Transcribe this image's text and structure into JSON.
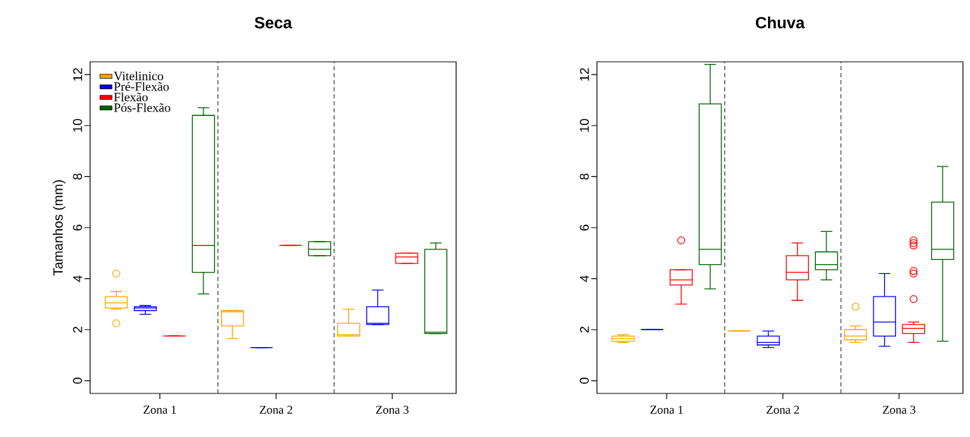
{
  "chart_data": [
    {
      "type": "box",
      "title": "Seca",
      "ylabel": "Tamanhos (mm)",
      "categories": [
        "Zona 1",
        "Zona 2",
        "Zona 3"
      ],
      "ylim": [
        -0.5,
        12.5
      ],
      "yticks": [
        0,
        2,
        4,
        6,
        8,
        10,
        12
      ],
      "legend": "top left",
      "series": [
        {
          "name": "Vitelinico",
          "color": "#ffa500",
          "boxes": [
            {
              "low": 2.8,
              "q1": 2.85,
              "median": 3.05,
              "q3": 3.3,
              "high": 3.5,
              "outliers": [
                4.2,
                2.25
              ]
            },
            {
              "low": 1.65,
              "q1": 2.15,
              "median": 2.7,
              "q3": 2.75,
              "high": 2.75
            },
            {
              "low": 1.75,
              "q1": 1.75,
              "median": 1.8,
              "q3": 2.25,
              "high": 2.8
            }
          ]
        },
        {
          "name": "Pré-Flexão",
          "color": "#0000ff",
          "boxes": [
            {
              "low": 2.6,
              "q1": 2.75,
              "median": 2.85,
              "q3": 2.9,
              "high": 2.95
            },
            {
              "low": 1.3,
              "q1": 1.3,
              "median": 1.3,
              "q3": 1.3,
              "high": 1.3
            },
            {
              "low": 2.2,
              "q1": 2.2,
              "median": 2.25,
              "q3": 2.9,
              "high": 3.55
            }
          ]
        },
        {
          "name": "Flexão",
          "color": "#ff0000",
          "boxes": [
            {
              "low": 1.75,
              "q1": 1.75,
              "median": 1.75,
              "q3": 1.75,
              "high": 1.75
            },
            {
              "low": 5.3,
              "q1": 5.3,
              "median": 5.3,
              "q3": 5.3,
              "high": 5.3
            },
            {
              "low": 4.6,
              "q1": 4.6,
              "median": 4.85,
              "q3": 5.0,
              "high": 5.0
            }
          ]
        },
        {
          "name": "Pós-Flexão",
          "color": "#006400",
          "boxes": [
            {
              "low": 3.4,
              "q1": 4.25,
              "median": 5.3,
              "q3": 10.4,
              "high": 10.7
            },
            {
              "low": 4.9,
              "q1": 4.9,
              "median": 5.15,
              "q3": 5.45,
              "high": 5.45
            },
            {
              "low": 1.85,
              "q1": 1.85,
              "median": 1.9,
              "q3": 5.15,
              "high": 5.4
            }
          ]
        }
      ]
    },
    {
      "type": "box",
      "title": "Chuva",
      "categories": [
        "Zona 1",
        "Zona 2",
        "Zona 3"
      ],
      "ylim": [
        -0.5,
        12.5
      ],
      "yticks": [
        0,
        2,
        4,
        6,
        8,
        10,
        12
      ],
      "series": [
        {
          "color": "#ffa500",
          "boxes": [
            {
              "low": 1.5,
              "q1": 1.55,
              "median": 1.65,
              "q3": 1.75,
              "high": 1.8
            },
            {
              "low": 1.95,
              "q1": 1.95,
              "median": 1.95,
              "q3": 1.95,
              "high": 1.95
            },
            {
              "low": 1.5,
              "q1": 1.6,
              "median": 1.75,
              "q3": 2.0,
              "high": 2.15,
              "outliers": [
                2.9
              ]
            }
          ]
        },
        {
          "color": "#0000ff",
          "boxes": [
            {
              "low": 2.0,
              "q1": 2.0,
              "median": 2.0,
              "q3": 2.0,
              "high": 2.0
            },
            {
              "low": 1.3,
              "q1": 1.4,
              "median": 1.5,
              "q3": 1.75,
              "high": 1.95
            },
            {
              "low": 1.35,
              "q1": 1.75,
              "median": 2.3,
              "q3": 3.3,
              "high": 4.2
            }
          ]
        },
        {
          "color": "#ff0000",
          "boxes": [
            {
              "low": 3.0,
              "q1": 3.75,
              "median": 3.95,
              "q3": 4.35,
              "high": 4.35,
              "outliers": [
                5.5
              ]
            },
            {
              "low": 3.15,
              "q1": 3.95,
              "median": 4.25,
              "q3": 4.9,
              "high": 5.4
            },
            {
              "low": 1.5,
              "q1": 1.85,
              "median": 2.05,
              "q3": 2.2,
              "high": 2.3,
              "outliers": [
                5.5,
                5.4,
                5.3,
                4.3,
                4.2,
                3.2
              ]
            }
          ]
        },
        {
          "color": "#006400",
          "boxes": [
            {
              "low": 3.6,
              "q1": 4.55,
              "median": 5.15,
              "q3": 10.85,
              "high": 12.4
            },
            {
              "low": 3.95,
              "q1": 4.35,
              "median": 4.55,
              "q3": 5.05,
              "high": 5.85
            },
            {
              "low": 1.55,
              "q1": 4.75,
              "median": 5.15,
              "q3": 7.0,
              "high": 8.4
            }
          ]
        }
      ]
    }
  ]
}
